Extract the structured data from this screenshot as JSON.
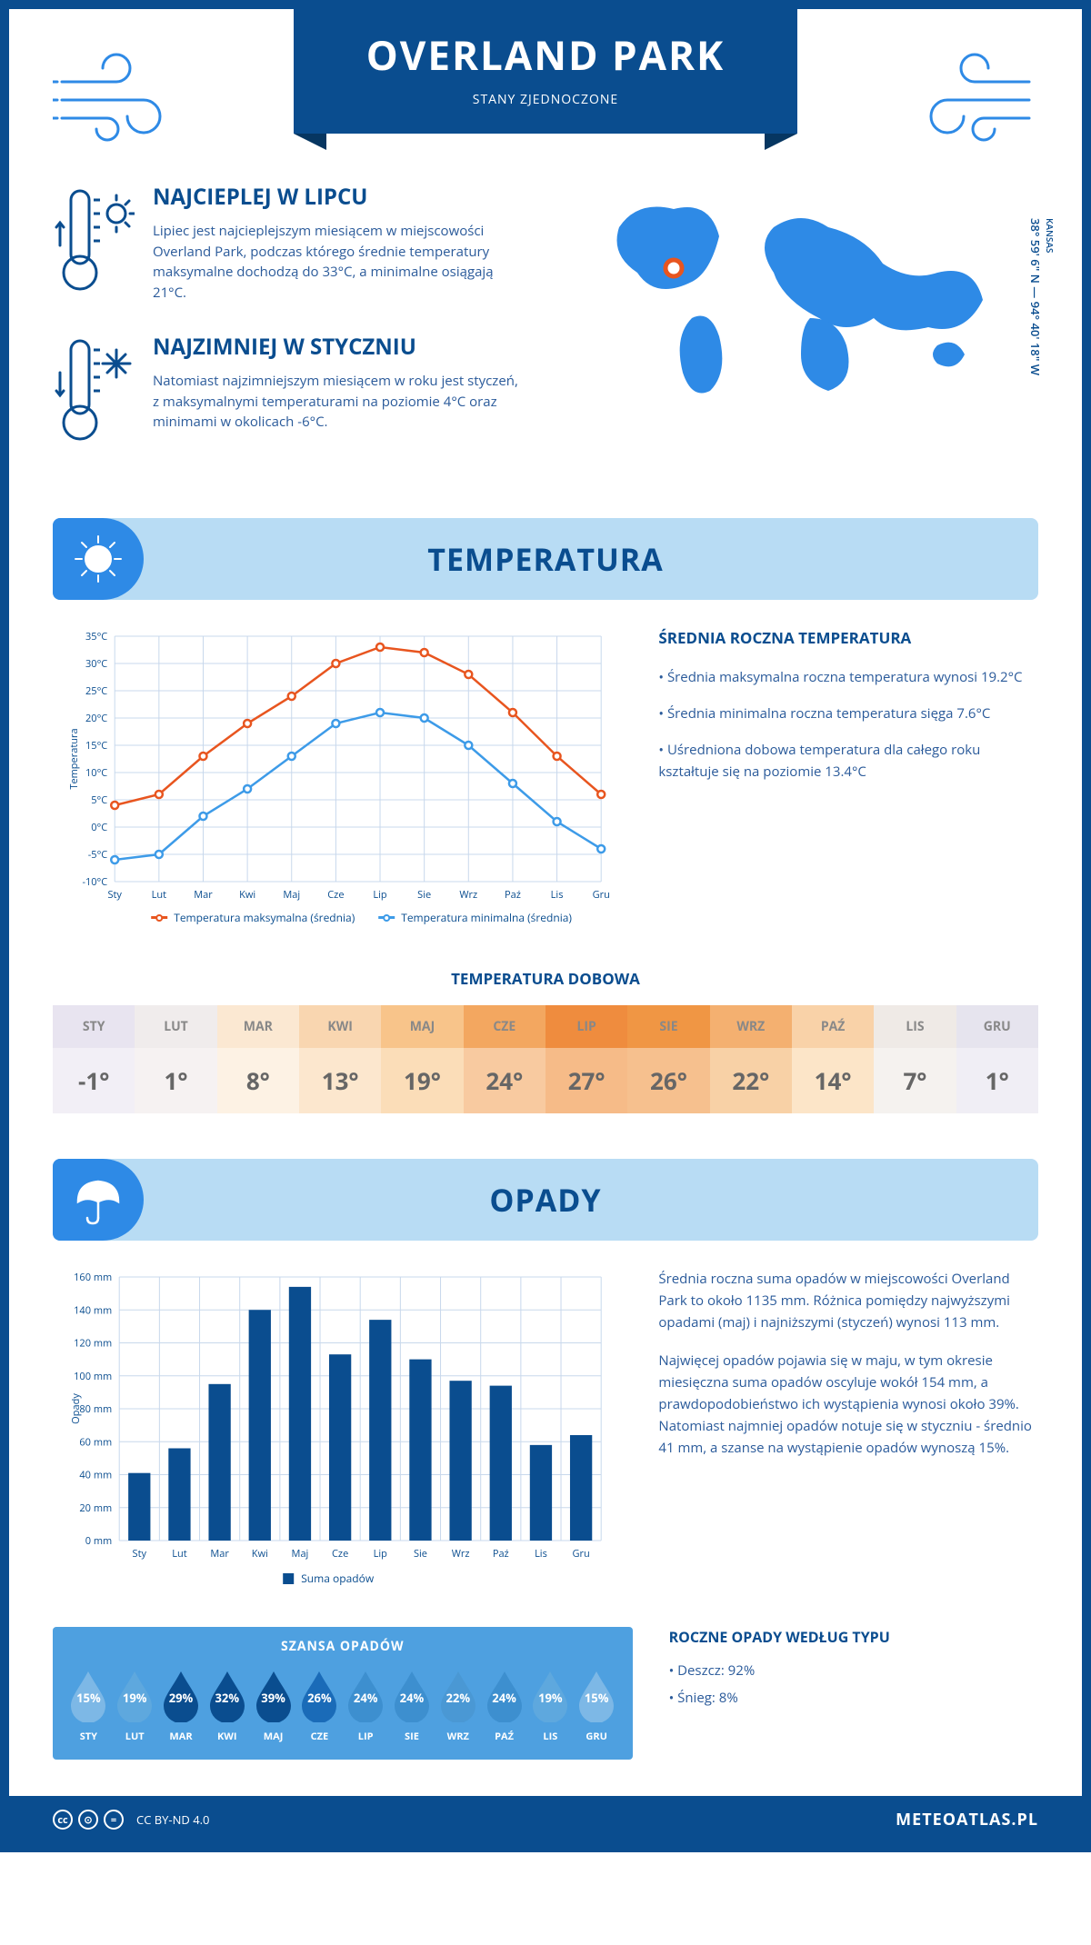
{
  "header": {
    "title": "OVERLAND PARK",
    "subtitle": "STANY ZJEDNOCZONE"
  },
  "coords": {
    "region": "KANSAS",
    "lat": "38° 59' 6\" N",
    "lon": "94° 40' 18\" W"
  },
  "facts": {
    "hot": {
      "title": "NAJCIEPLEJ W LIPCU",
      "text": "Lipiec jest najcieplejszym miesiącem w miejscowości Overland Park, podczas którego średnie temperatury maksymalne dochodzą do 33°C, a minimalne osiągają 21°C."
    },
    "cold": {
      "title": "NAJZIMNIEJ W STYCZNIU",
      "text": "Natomiast najzimniejszym miesiącem w roku jest styczeń, z maksymalnymi temperaturami na poziomie 4°C oraz minimami w okolicach -6°C."
    }
  },
  "temperature": {
    "section_title": "TEMPERATURA",
    "chart": {
      "type": "line",
      "months": [
        "Sty",
        "Lut",
        "Mar",
        "Kwi",
        "Maj",
        "Cze",
        "Lip",
        "Sie",
        "Wrz",
        "Paź",
        "Lis",
        "Gru"
      ],
      "max_series": [
        4,
        6,
        13,
        19,
        24,
        30,
        33,
        32,
        28,
        21,
        13,
        6
      ],
      "min_series": [
        -6,
        -5,
        2,
        7,
        13,
        19,
        21,
        20,
        15,
        8,
        1,
        -4
      ],
      "max_color": "#e8551f",
      "min_color": "#3d9be8",
      "ylim": [
        -10,
        35
      ],
      "ytick_step": 5,
      "ylabel": "Temperatura",
      "grid_color": "#c8d8ec",
      "legend_max": "Temperatura maksymalna (średnia)",
      "legend_min": "Temperatura minimalna (średnia)"
    },
    "stats": {
      "title": "ŚREDNIA ROCZNA TEMPERATURA",
      "line1": "• Średnia maksymalna roczna temperatura wynosi 19.2°C",
      "line2": "• Średnia minimalna roczna temperatura sięga 7.6°C",
      "line3": "• Uśredniona dobowa temperatura dla całego roku kształtuje się na poziomie 13.4°C"
    },
    "daily": {
      "title": "TEMPERATURA DOBOWA",
      "months": [
        "STY",
        "LUT",
        "MAR",
        "KWI",
        "MAJ",
        "CZE",
        "LIP",
        "SIE",
        "WRZ",
        "PAŹ",
        "LIS",
        "GRU"
      ],
      "values": [
        "-1°",
        "1°",
        "8°",
        "13°",
        "19°",
        "24°",
        "27°",
        "26°",
        "22°",
        "14°",
        "7°",
        "1°"
      ],
      "header_colors": [
        "#e8e4f0",
        "#f0ecec",
        "#fbe8d2",
        "#f9d6b0",
        "#f8c48a",
        "#f3a760",
        "#ef8c3e",
        "#f09644",
        "#f4b070",
        "#f9d2a8",
        "#efeae6",
        "#e6e4ee"
      ],
      "value_colors": [
        "#f2eff6",
        "#f6f2f2",
        "#fdf2e4",
        "#fce7ce",
        "#fbddb8",
        "#f8caa0",
        "#f6bb88",
        "#f6c08e",
        "#f8d1a6",
        "#fce5c8",
        "#f5f2ef",
        "#f0eef5"
      ]
    }
  },
  "precipitation": {
    "section_title": "OPADY",
    "chart": {
      "type": "bar",
      "months": [
        "Sty",
        "Lut",
        "Mar",
        "Kwi",
        "Maj",
        "Cze",
        "Lip",
        "Sie",
        "Wrz",
        "Paź",
        "Lis",
        "Gru"
      ],
      "values": [
        41,
        56,
        95,
        140,
        154,
        113,
        134,
        110,
        97,
        94,
        58,
        64
      ],
      "ylim": [
        0,
        160
      ],
      "ytick_step": 20,
      "ylabel": "Opady",
      "bar_color": "#0a4d8f",
      "grid_color": "#c8d8ec",
      "legend": "Suma opadów"
    },
    "text": {
      "p1": "Średnia roczna suma opadów w miejscowości Overland Park to około 1135 mm. Różnica pomiędzy najwyższymi opadami (maj) i najniższymi (styczeń) wynosi 113 mm.",
      "p2": "Najwięcej opadów pojawia się w maju, w tym okresie miesięczna suma opadów oscyluje wokół 154 mm, a prawdopodobieństwo ich wystąpienia wynosi około 39%. Natomiast najmniej opadów notuje się w styczniu - średnio 41 mm, a szanse na wystąpienie opadów wynoszą 15%."
    },
    "chance": {
      "title": "SZANSA OPADÓW",
      "months": [
        "STY",
        "LUT",
        "MAR",
        "KWI",
        "MAJ",
        "CZE",
        "LIP",
        "SIE",
        "WRZ",
        "PAŹ",
        "LIS",
        "GRU"
      ],
      "values": [
        "15%",
        "19%",
        "29%",
        "32%",
        "39%",
        "26%",
        "24%",
        "24%",
        "22%",
        "24%",
        "19%",
        "15%"
      ],
      "colors": [
        "#7db8e6",
        "#5ea8de",
        "#0a4d8f",
        "#0a4d8f",
        "#0a4d8f",
        "#1a6bb8",
        "#3d8fcf",
        "#3d8fcf",
        "#4a98d4",
        "#3d8fcf",
        "#5ea8de",
        "#7db8e6"
      ]
    },
    "by_type": {
      "title": "ROCZNE OPADY WEDŁUG TYPU",
      "rain": "• Deszcz: 92%",
      "snow": "• Śnieg: 8%"
    }
  },
  "footer": {
    "license": "CC BY-ND 4.0",
    "brand": "METEOATLAS.PL"
  }
}
